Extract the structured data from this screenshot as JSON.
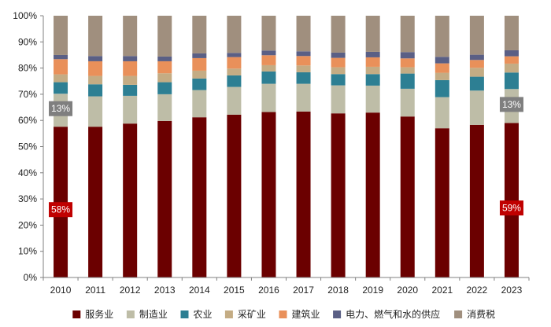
{
  "chart_data": {
    "type": "bar",
    "stacked": true,
    "categories": [
      "2010",
      "2011",
      "2012",
      "2013",
      "2014",
      "2015",
      "2016",
      "2017",
      "2018",
      "2019",
      "2020",
      "2021",
      "2022",
      "2023"
    ],
    "ylim": [
      0,
      100
    ],
    "yticks": [
      "0%",
      "10%",
      "20%",
      "30%",
      "40%",
      "50%",
      "60%",
      "70%",
      "80%",
      "90%",
      "100%"
    ],
    "legend_position": "bottom",
    "series": [
      {
        "name": "服务业",
        "color": "#6b0000",
        "values": [
          57.6,
          57.6,
          58.8,
          59.8,
          61.2,
          62.2,
          63.2,
          63.4,
          62.7,
          63.0,
          61.5,
          57.0,
          58.3,
          59.0
        ]
      },
      {
        "name": "制造业",
        "color": "#bebda7",
        "values": [
          12.6,
          11.6,
          10.6,
          10.2,
          10.4,
          10.6,
          10.8,
          10.6,
          10.7,
          10.3,
          10.6,
          11.9,
          13.1,
          13.0
        ]
      },
      {
        "name": "农业",
        "color": "#2d7f93",
        "values": [
          4.4,
          4.6,
          4.2,
          4.6,
          4.4,
          4.4,
          4.7,
          4.4,
          4.3,
          4.4,
          5.8,
          6.5,
          5.3,
          6.3
        ]
      },
      {
        "name": "采矿业",
        "color": "#c4ac84",
        "values": [
          3.0,
          3.2,
          3.4,
          3.4,
          3.0,
          2.6,
          2.4,
          2.6,
          2.6,
          2.8,
          2.4,
          2.8,
          3.4,
          3.4
        ]
      },
      {
        "name": "建筑业",
        "color": "#e9905a",
        "values": [
          5.8,
          5.6,
          5.6,
          4.6,
          4.8,
          4.4,
          3.8,
          3.6,
          3.6,
          3.6,
          3.4,
          3.6,
          3.0,
          2.8
        ]
      },
      {
        "name": "电力、燃气和水的供应",
        "color": "#5a5f85",
        "values": [
          1.6,
          2.0,
          2.0,
          1.8,
          1.8,
          1.6,
          1.8,
          1.8,
          2.0,
          2.1,
          2.4,
          2.5,
          2.0,
          2.3
        ]
      },
      {
        "name": "消费税",
        "color": "#a08f7e",
        "values": [
          15.0,
          15.4,
          15.4,
          15.6,
          14.4,
          14.2,
          13.3,
          13.6,
          14.1,
          13.8,
          13.9,
          15.7,
          14.9,
          13.2
        ]
      }
    ],
    "annotations": [
      {
        "category": "2010",
        "series": "服务业",
        "text": "58%",
        "color": "#c00000"
      },
      {
        "category": "2010",
        "series": "制造业",
        "text": "13%",
        "color": "#7f7f7f"
      },
      {
        "category": "2023",
        "series": "服务业",
        "text": "59%",
        "color": "#c00000"
      },
      {
        "category": "2023",
        "series": "制造业",
        "text": "13%",
        "color": "#7f7f7f"
      }
    ]
  }
}
